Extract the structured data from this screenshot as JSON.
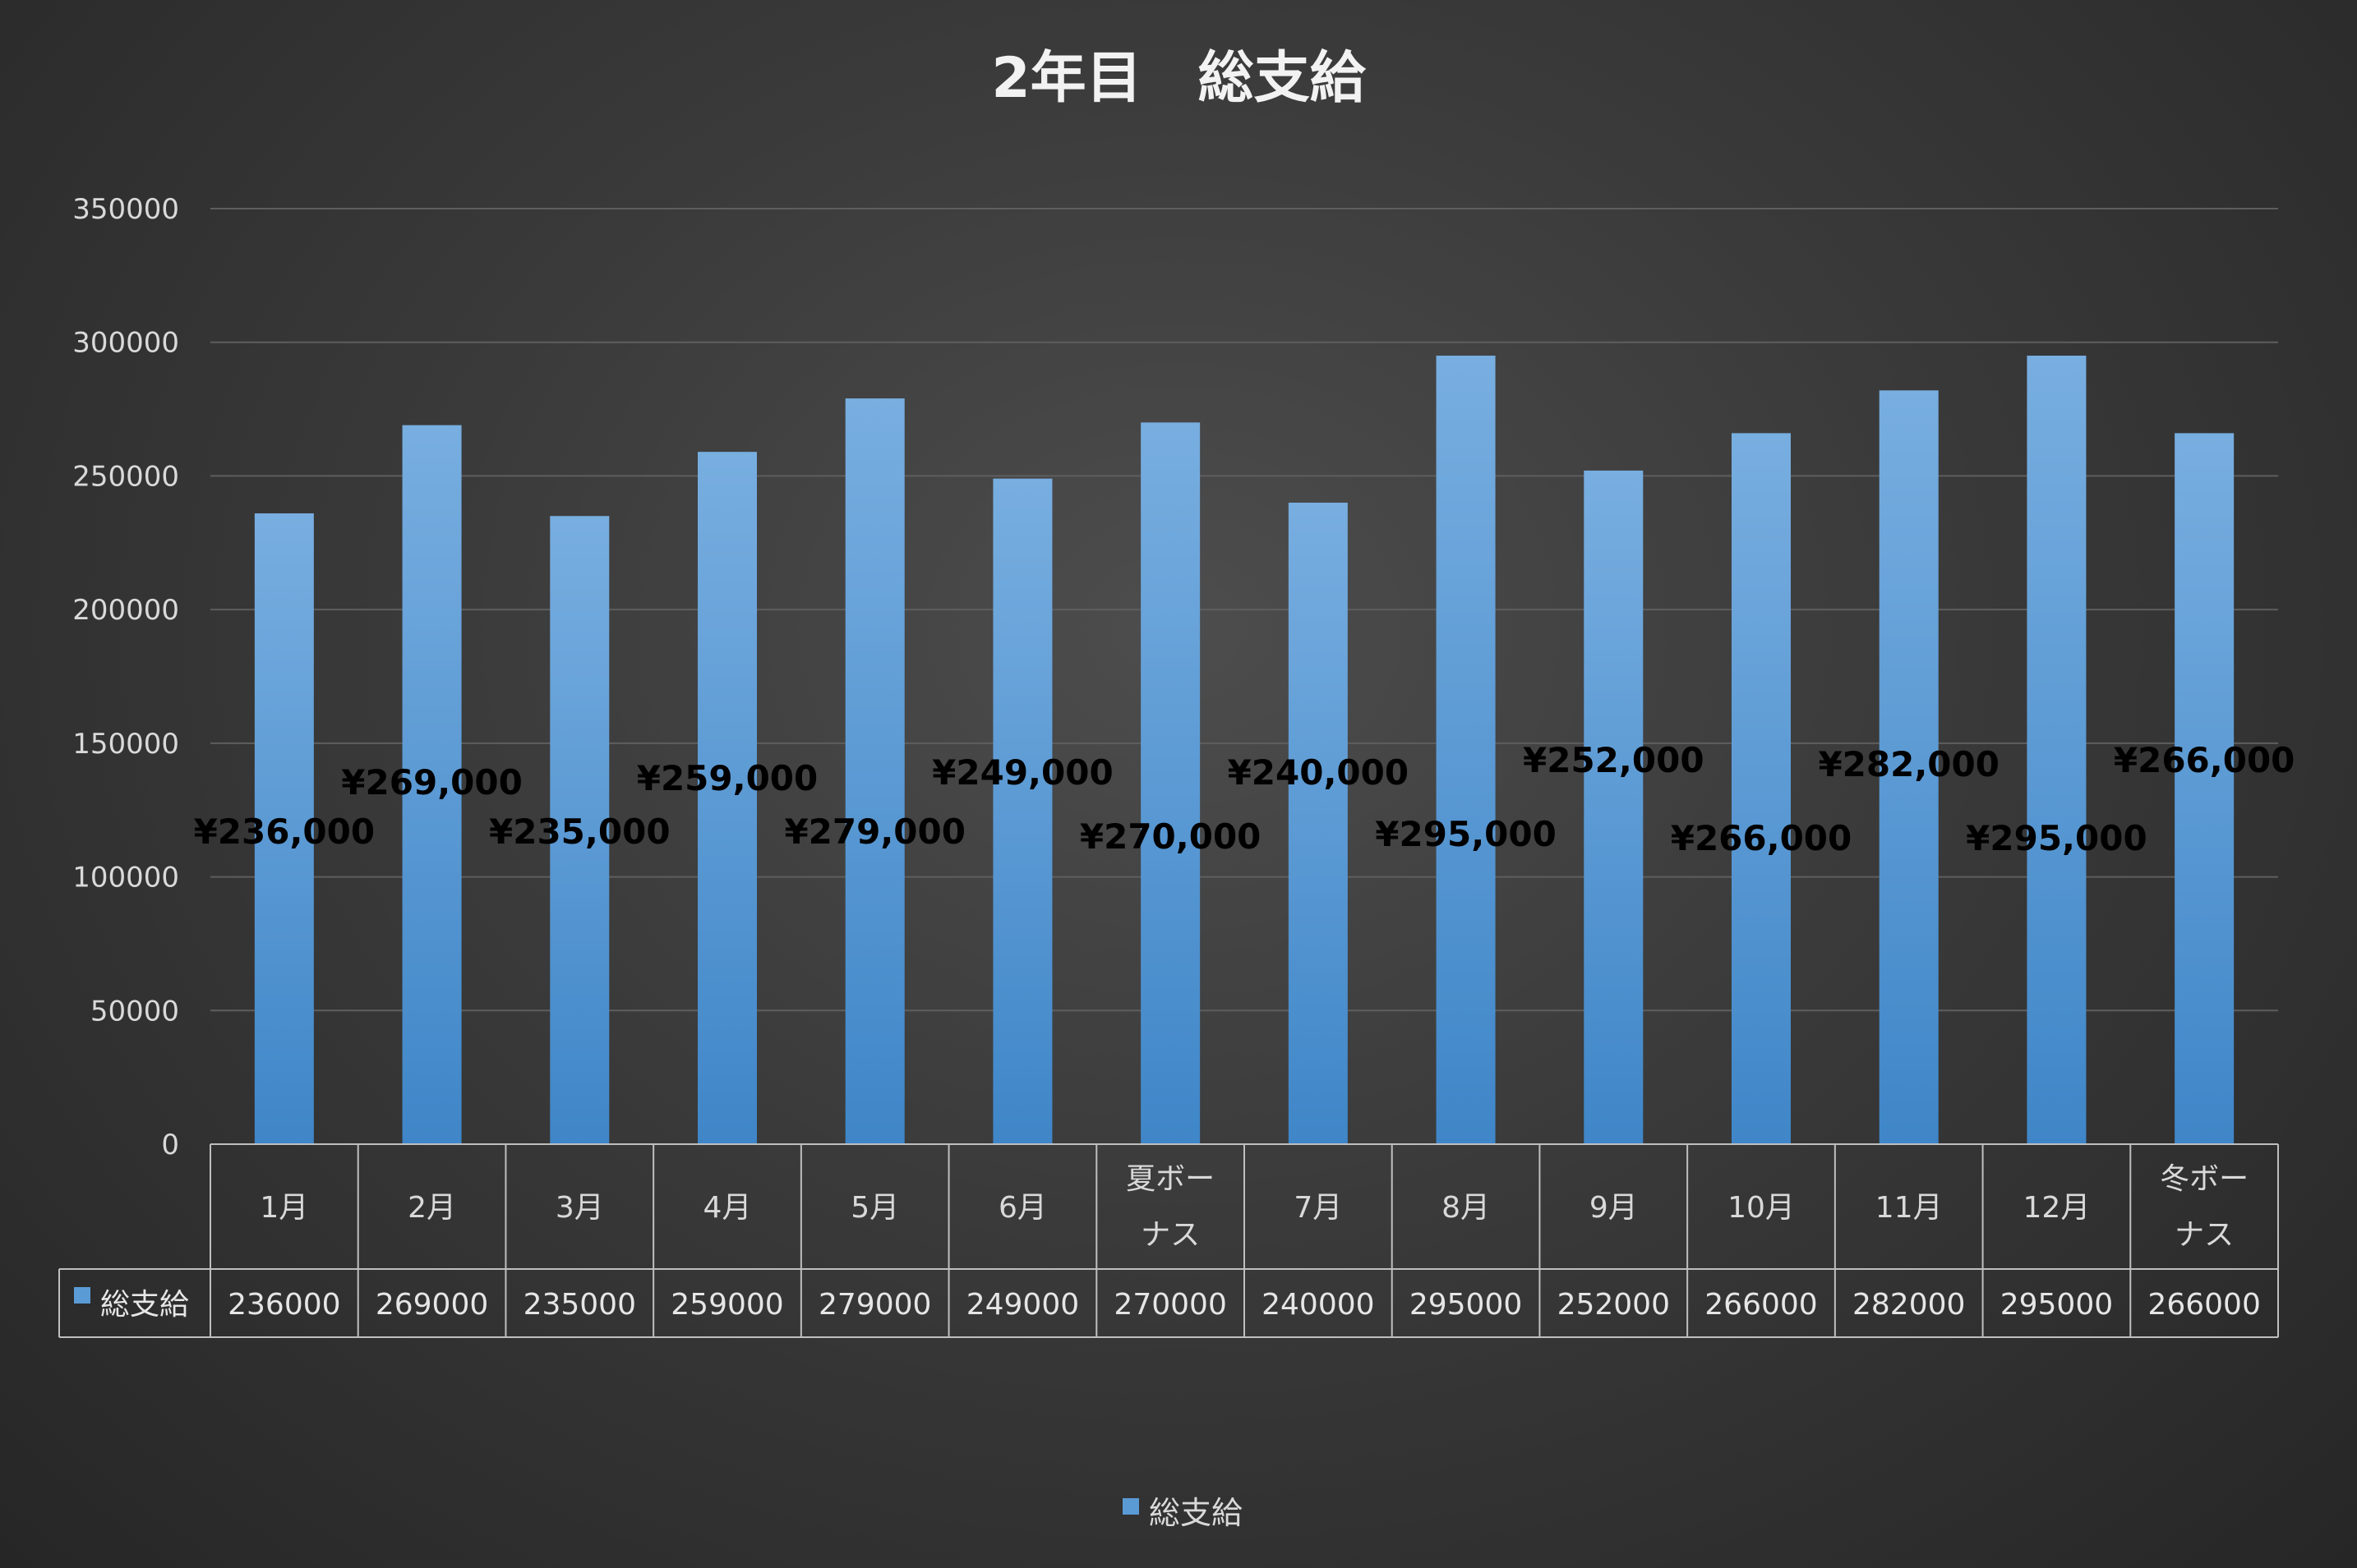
{
  "chart_data": {
    "type": "bar",
    "title": "2年目　総支給",
    "categories": [
      "1月",
      "2月",
      "3月",
      "4月",
      "5月",
      "6月",
      "夏ボーナス",
      "7月",
      "8月",
      "9月",
      "10月",
      "11月",
      "12月",
      "冬ボーナス"
    ],
    "series": [
      {
        "name": "総支給",
        "values": [
          236000,
          269000,
          235000,
          259000,
          279000,
          249000,
          270000,
          240000,
          295000,
          252000,
          266000,
          282000,
          295000,
          266000
        ],
        "data_labels": [
          "¥236,000",
          "¥269,000",
          "¥235,000",
          "¥259,000",
          "¥279,000",
          "¥249,000",
          "¥270,000",
          "¥240,000",
          "¥295,000",
          "¥252,000",
          "¥266,000",
          "¥282,000",
          "¥295,000",
          "¥266,000"
        ],
        "color": "#5b9bd5"
      }
    ],
    "ylim": [
      0,
      350000
    ],
    "yticks": [
      "0",
      "50000",
      "100000",
      "150000",
      "200000",
      "250000",
      "300000",
      "350000"
    ],
    "grid": true,
    "legend": "bottom",
    "data_table": true
  }
}
